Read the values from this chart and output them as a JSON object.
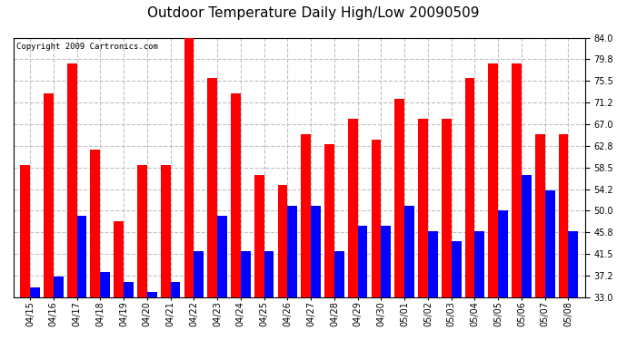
{
  "title": "Outdoor Temperature Daily High/Low 20090509",
  "copyright": "Copyright 2009 Cartronics.com",
  "dates": [
    "04/15",
    "04/16",
    "04/17",
    "04/18",
    "04/19",
    "04/20",
    "04/21",
    "04/22",
    "04/23",
    "04/24",
    "04/25",
    "04/26",
    "04/27",
    "04/28",
    "04/29",
    "04/30",
    "05/01",
    "05/02",
    "05/03",
    "05/04",
    "05/05",
    "05/06",
    "05/07",
    "05/08"
  ],
  "highs": [
    59,
    73,
    79,
    62,
    48,
    59,
    59,
    84,
    76,
    73,
    57,
    55,
    65,
    63,
    68,
    64,
    72,
    68,
    68,
    76,
    79,
    79,
    65,
    65
  ],
  "lows": [
    35,
    37,
    49,
    38,
    36,
    34,
    36,
    42,
    49,
    42,
    42,
    51,
    51,
    42,
    47,
    47,
    51,
    46,
    44,
    46,
    50,
    57,
    54,
    46
  ],
  "high_color": "#ff0000",
  "low_color": "#0000ff",
  "bg_color": "#ffffff",
  "grid_color": "#c0c0c0",
  "ymin": 33.0,
  "ymax": 84.0,
  "yticks": [
    33.0,
    37.2,
    41.5,
    45.8,
    50.0,
    54.2,
    58.5,
    62.8,
    67.0,
    71.2,
    75.5,
    79.8,
    84.0
  ],
  "bar_width": 0.42,
  "title_fontsize": 11,
  "tick_fontsize": 7,
  "copyright_fontsize": 6.5
}
